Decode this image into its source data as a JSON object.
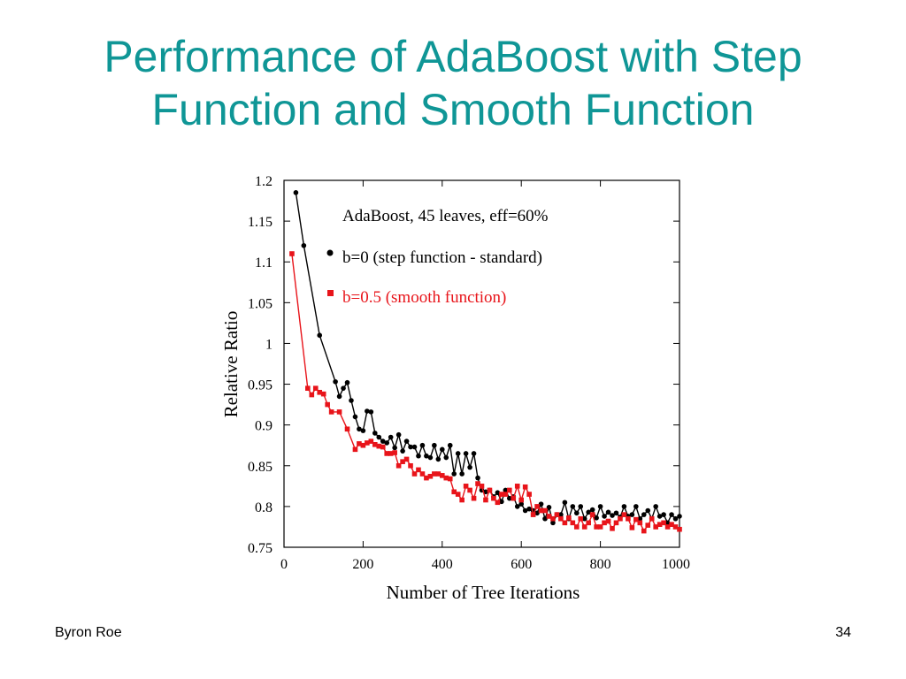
{
  "slide": {
    "title_line1": "Performance of AdaBoost with Step",
    "title_line2": "Function and Smooth Function",
    "footer_author": "Byron Roe",
    "page_number": "34"
  },
  "colors": {
    "title": "#0f9696",
    "series_standard": "#000000",
    "series_smooth": "#e8141a"
  },
  "chart_data": {
    "type": "line",
    "title": "AdaBoost, 45 leaves, eff=60%",
    "xlabel": "Number of Tree Iterations",
    "ylabel": "Relative Ratio",
    "xlim": [
      0,
      1000
    ],
    "ylim": [
      0.75,
      1.2
    ],
    "x_ticks": [
      "0",
      "200",
      "400",
      "600",
      "800",
      "1000"
    ],
    "y_ticks": [
      "0.75",
      "0.8",
      "0.85",
      "0.9",
      "0.95",
      "1",
      "1.05",
      "1.1",
      "1.15",
      "1.2"
    ],
    "grid": false,
    "legend_position": "top-right",
    "series": [
      {
        "name": "b=0 (step function - standard)",
        "marker": "circle",
        "color": "#000000",
        "x": [
          30,
          50,
          90,
          130,
          140,
          150,
          160,
          170,
          180,
          190,
          200,
          210,
          220,
          230,
          240,
          250,
          260,
          270,
          280,
          290,
          300,
          310,
          320,
          330,
          340,
          350,
          360,
          370,
          380,
          390,
          400,
          410,
          420,
          430,
          440,
          450,
          460,
          470,
          480,
          490,
          500,
          510,
          520,
          530,
          540,
          550,
          560,
          570,
          580,
          590,
          600,
          610,
          620,
          630,
          640,
          650,
          660,
          670,
          680,
          690,
          700,
          710,
          720,
          730,
          740,
          750,
          760,
          770,
          780,
          790,
          800,
          810,
          820,
          830,
          840,
          850,
          860,
          870,
          880,
          890,
          900,
          910,
          920,
          930,
          940,
          950,
          960,
          970,
          980,
          990,
          1000
        ],
        "y": [
          1.185,
          1.12,
          1.01,
          0.953,
          0.935,
          0.945,
          0.952,
          0.93,
          0.91,
          0.895,
          0.893,
          0.917,
          0.916,
          0.89,
          0.885,
          0.88,
          0.878,
          0.885,
          0.872,
          0.888,
          0.868,
          0.88,
          0.873,
          0.873,
          0.862,
          0.875,
          0.862,
          0.86,
          0.875,
          0.858,
          0.87,
          0.86,
          0.875,
          0.84,
          0.865,
          0.84,
          0.865,
          0.848,
          0.865,
          0.835,
          0.82,
          0.818,
          0.82,
          0.812,
          0.817,
          0.806,
          0.82,
          0.81,
          0.812,
          0.8,
          0.803,
          0.795,
          0.797,
          0.795,
          0.792,
          0.803,
          0.785,
          0.799,
          0.78,
          0.79,
          0.79,
          0.805,
          0.785,
          0.8,
          0.792,
          0.8,
          0.785,
          0.793,
          0.796,
          0.786,
          0.8,
          0.788,
          0.793,
          0.789,
          0.792,
          0.787,
          0.8,
          0.788,
          0.79,
          0.8,
          0.785,
          0.79,
          0.795,
          0.785,
          0.8,
          0.788,
          0.79,
          0.78,
          0.79,
          0.785,
          0.788
        ]
      },
      {
        "name": "b=0.5 (smooth function)",
        "marker": "square",
        "color": "#e8141a",
        "x": [
          20,
          60,
          70,
          80,
          90,
          100,
          110,
          120,
          140,
          160,
          180,
          190,
          200,
          210,
          220,
          230,
          240,
          250,
          260,
          270,
          280,
          290,
          300,
          310,
          320,
          330,
          340,
          350,
          360,
          370,
          380,
          390,
          400,
          410,
          420,
          430,
          440,
          450,
          460,
          470,
          480,
          490,
          500,
          510,
          520,
          530,
          540,
          550,
          560,
          570,
          580,
          590,
          600,
          610,
          620,
          630,
          640,
          650,
          660,
          670,
          680,
          690,
          700,
          710,
          720,
          730,
          740,
          750,
          760,
          770,
          780,
          790,
          800,
          810,
          820,
          830,
          840,
          850,
          860,
          870,
          880,
          890,
          900,
          910,
          920,
          930,
          940,
          950,
          960,
          970,
          980,
          990,
          1000
        ],
        "y": [
          1.11,
          0.945,
          0.937,
          0.945,
          0.94,
          0.938,
          0.925,
          0.916,
          0.916,
          0.895,
          0.87,
          0.877,
          0.875,
          0.878,
          0.88,
          0.876,
          0.874,
          0.873,
          0.865,
          0.865,
          0.866,
          0.85,
          0.855,
          0.858,
          0.85,
          0.84,
          0.845,
          0.84,
          0.835,
          0.837,
          0.84,
          0.84,
          0.838,
          0.835,
          0.834,
          0.818,
          0.815,
          0.808,
          0.825,
          0.82,
          0.81,
          0.828,
          0.825,
          0.808,
          0.82,
          0.81,
          0.805,
          0.815,
          0.815,
          0.82,
          0.81,
          0.825,
          0.808,
          0.824,
          0.815,
          0.79,
          0.8,
          0.795,
          0.795,
          0.788,
          0.785,
          0.79,
          0.785,
          0.78,
          0.786,
          0.78,
          0.775,
          0.785,
          0.775,
          0.78,
          0.79,
          0.775,
          0.775,
          0.78,
          0.782,
          0.773,
          0.78,
          0.785,
          0.79,
          0.785,
          0.774,
          0.784,
          0.78,
          0.77,
          0.777,
          0.785,
          0.775,
          0.778,
          0.78,
          0.775,
          0.778,
          0.775,
          0.772
        ]
      }
    ]
  }
}
